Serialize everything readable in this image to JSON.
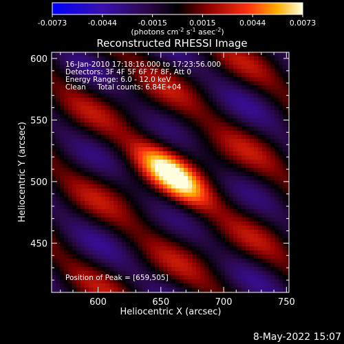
{
  "chart_data": {
    "type": "heatmap",
    "title": "Reconstructed RHESSI Image",
    "xlabel": "Heliocentric X (arcsec)",
    "ylabel": "Heliocentric Y (arcsec)",
    "xlim": [
      563,
      752
    ],
    "ylim": [
      410,
      605
    ],
    "x_ticks": [
      600,
      650,
      700,
      750
    ],
    "y_ticks": [
      450,
      500,
      550,
      600
    ],
    "grid": false,
    "colorbar": {
      "position": "top",
      "range": [
        -0.0073,
        0.0073
      ],
      "ticks": [
        "-0.0073",
        "-0.0044",
        "-0.0015",
        "0.0015",
        "0.0044",
        "0.0073"
      ],
      "label_prefix": "(photons cm",
      "label_exp1": "-2",
      "label_mid": " s",
      "label_exp2": "-1",
      "label_mid2": " asec",
      "label_exp3": "-2",
      "label_suffix": ")"
    },
    "annotations": [
      "16-Jan-2010 17:18:16.000 to 17:23:56.000",
      "Detectors: 3F 4F 5F 6F 7F 8F, Att 0",
      "Energy Range: 6.0 - 12.0 keV",
      "Clean     Total counts: 6.84E+04"
    ],
    "peak_label": "Position of Peak = [659,505]",
    "peak": {
      "x": 659,
      "y": 505,
      "value": 0.0073
    },
    "colors": {
      "cmap": [
        "#0000ff",
        "#4a15a0",
        "#2a0a4a",
        "#000000",
        "#7a0000",
        "#d01010",
        "#ff8000",
        "#ffff40",
        "#ffffff"
      ]
    }
  },
  "footer_timestamp": "8-May-2022 15:07"
}
